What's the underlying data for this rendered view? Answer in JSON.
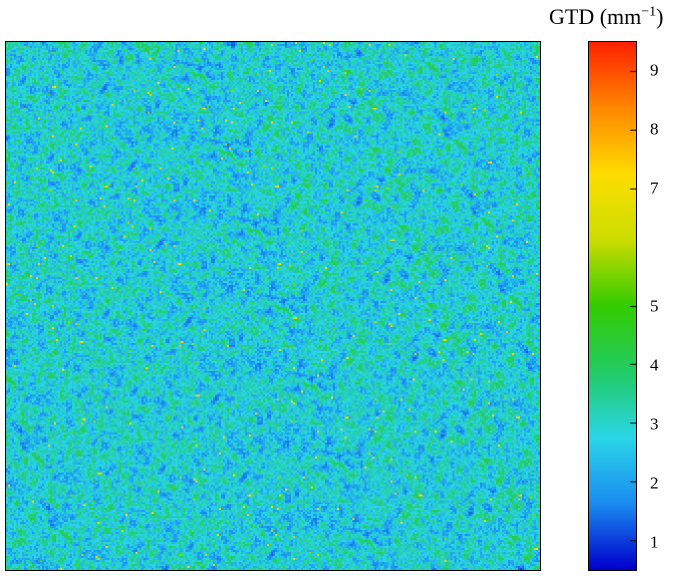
{
  "chart_data": {
    "type": "heatmap",
    "title": "",
    "colorbar": {
      "label_main": "GTD (mm",
      "label_exp": "−1",
      "label_close": ")",
      "ticks": [
        {
          "label": "9",
          "value": 9
        },
        {
          "label": "8",
          "value": 8
        },
        {
          "label": "7",
          "value": 7
        },
        {
          "label": "5",
          "value": 5
        },
        {
          "label": "4",
          "value": 4
        },
        {
          "label": "3",
          "value": 3
        },
        {
          "label": "2",
          "value": 2
        },
        {
          "label": "1",
          "value": 1
        }
      ],
      "range": [
        0.5,
        9.5
      ],
      "colormap": [
        "#0000cc",
        "#1a8cf0",
        "#2ad6e8",
        "#22cc66",
        "#33cc00",
        "#ccdd00",
        "#ffdd00",
        "#ff8800",
        "#ff2200"
      ]
    },
    "field": {
      "description_values": "random-texture density field, values mostly between 1.5 and 4",
      "typical_min": 1.3,
      "typical_max": 4.5,
      "mean": 2.8,
      "background_color": "#46c6d2"
    }
  }
}
